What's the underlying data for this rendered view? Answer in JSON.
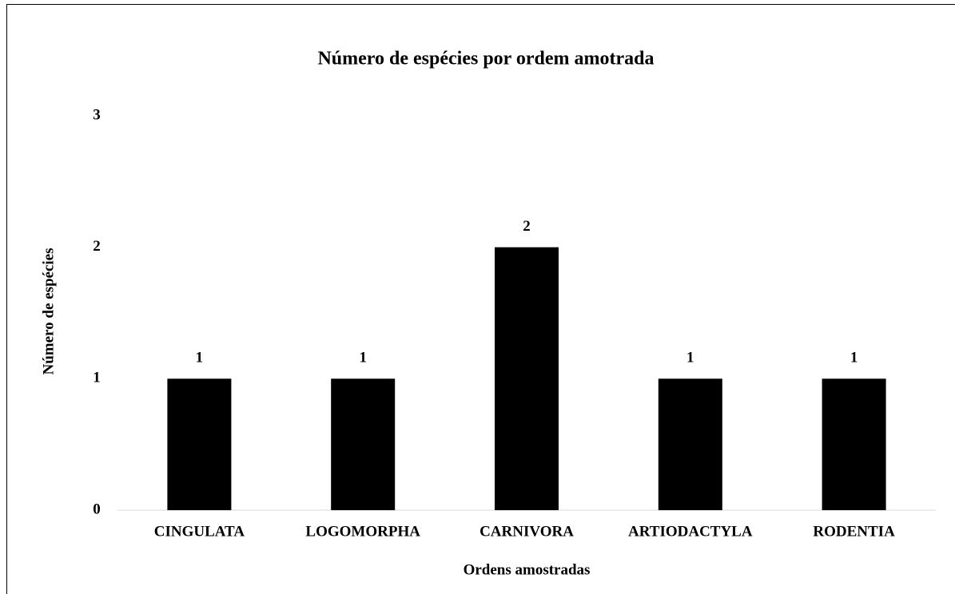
{
  "chart_data": {
    "type": "bar",
    "title": "Número de espécies por ordem amotrada",
    "x_label": "Ordens amostradas",
    "y_label": "Número de espécies",
    "categories": [
      "CINGULATA",
      "LOGOMORPHA",
      "CARNIVORA",
      "ARTIODACTYLA",
      "RODENTIA"
    ],
    "values": [
      1,
      1,
      2,
      1,
      1
    ],
    "color": "#000000",
    "ylim": [
      0,
      3
    ],
    "yticks": [
      0,
      1,
      2,
      3
    ]
  }
}
